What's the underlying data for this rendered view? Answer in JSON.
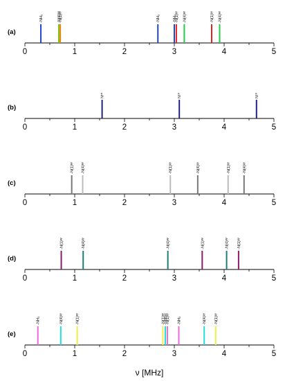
{
  "chart_data": {
    "type": "bar",
    "chart_kind": "stick-spectrum",
    "xlabel": "ν [MHz]",
    "xlim": [
      0,
      5
    ],
    "x_ticks": [
      "0",
      "1",
      "2",
      "3",
      "4",
      "5"
    ],
    "grid": false,
    "panels": [
      {
        "label": "(a)",
        "sticks": [
          {
            "x": 0.32,
            "height": 1.0,
            "color": "#2244cc",
            "label": "-NH₃"
          },
          {
            "x": 0.68,
            "height": 1.0,
            "color": "#88bb22",
            "label": "-N(4)ᵖʸ"
          },
          {
            "x": 0.71,
            "height": 1.0,
            "color": "#dd8800",
            "label": "-N(1)ᵖʸ"
          },
          {
            "x": 2.67,
            "height": 1.0,
            "color": "#2244cc",
            "label": "-NH₃"
          },
          {
            "x": 3.0,
            "height": 1.0,
            "color": "#2244cc",
            "label": "-NH₃"
          },
          {
            "x": 3.04,
            "height": 1.0,
            "color": "#dd2222",
            "label": "-N(1)ᵖʸ"
          },
          {
            "x": 3.2,
            "height": 1.0,
            "color": "#22cc44",
            "label": "-N(4)ᵖʸ"
          },
          {
            "x": 3.75,
            "height": 1.0,
            "color": "#dd2222",
            "label": "-N(1)ᵖʸ"
          },
          {
            "x": 3.91,
            "height": 1.0,
            "color": "#22cc44",
            "label": "-N(4)ᵖʸ"
          }
        ]
      },
      {
        "label": "(b)",
        "sticks": [
          {
            "x": 1.55,
            "height": 1.0,
            "color": "#1a237e",
            "label": "Nᶜʰ"
          },
          {
            "x": 3.1,
            "height": 1.0,
            "color": "#1a237e",
            "label": "Nᶜʰ"
          },
          {
            "x": 4.65,
            "height": 1.0,
            "color": "#1a237e",
            "label": "Nᶜʰ"
          }
        ]
      },
      {
        "label": "(c)",
        "sticks": [
          {
            "x": 0.94,
            "height": 1.0,
            "color": "#777777",
            "label": "-N(1)ᵖʸ"
          },
          {
            "x": 1.16,
            "height": 1.0,
            "color": "#bbbbbb",
            "label": "-N(4)ᵖʸ"
          },
          {
            "x": 2.92,
            "height": 1.0,
            "color": "#bbbbbb",
            "label": "-N(1)ᵖʸ"
          },
          {
            "x": 3.47,
            "height": 1.0,
            "color": "#777777",
            "label": "-N(4)ᵖʸ"
          },
          {
            "x": 4.08,
            "height": 1.0,
            "color": "#bbbbbb",
            "label": "-N(1)ᵖʸ"
          },
          {
            "x": 4.4,
            "height": 1.0,
            "color": "#777777",
            "label": "-N(4)ᵖʸ"
          }
        ]
      },
      {
        "label": "(d)",
        "sticks": [
          {
            "x": 0.73,
            "height": 1.0,
            "color": "#8b1a6b",
            "label": "-N(1)ᵖʸ"
          },
          {
            "x": 1.17,
            "height": 1.0,
            "color": "#1a7f7a",
            "label": "-N(4)ᵖʸ"
          },
          {
            "x": 2.87,
            "height": 1.0,
            "color": "#1a7f7a",
            "label": "-N(4)ᵖʸ"
          },
          {
            "x": 3.56,
            "height": 1.0,
            "color": "#8b1a6b",
            "label": "-N(1)ᵖʸ"
          },
          {
            "x": 4.05,
            "height": 1.0,
            "color": "#1a7f7a",
            "label": "-N(4)ᵖʸ"
          },
          {
            "x": 4.29,
            "height": 1.0,
            "color": "#8b1a6b",
            "label": "-N(1)ᵖʸ"
          }
        ]
      },
      {
        "label": "(e)",
        "sticks": [
          {
            "x": 0.26,
            "height": 1.0,
            "color": "#ee66dd",
            "label": "-NH₃"
          },
          {
            "x": 0.72,
            "height": 1.0,
            "color": "#22dddd",
            "label": "-N(4)ᵖʸ"
          },
          {
            "x": 1.05,
            "height": 1.0,
            "color": "#eeee44",
            "label": "-N(1)ᵖʸ"
          },
          {
            "x": 2.77,
            "height": 1.0,
            "color": "#eeee44",
            "label": "-N(1)ᵖʸ"
          },
          {
            "x": 2.82,
            "height": 1.0,
            "color": "#22dddd",
            "label": "-N(4)ᵖʸ"
          },
          {
            "x": 2.86,
            "height": 1.0,
            "color": "#ee66dd",
            "label": "-N(1)ᵖʸ"
          },
          {
            "x": 3.09,
            "height": 1.0,
            "color": "#ee66dd",
            "label": "-NH₃"
          },
          {
            "x": 3.6,
            "height": 1.0,
            "color": "#22dddd",
            "label": "-N(4)ᵖʸ"
          },
          {
            "x": 3.83,
            "height": 1.0,
            "color": "#eeee44",
            "label": "-N(1)ᵖʸ"
          }
        ]
      }
    ]
  }
}
